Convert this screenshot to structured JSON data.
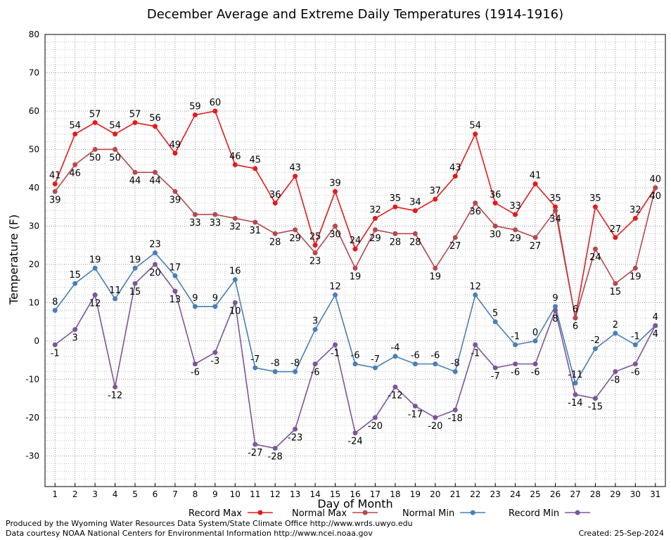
{
  "chart_data": {
    "type": "line",
    "title": "December Average and Extreme Daily Temperatures (1914-1916)",
    "xlabel": "Day of Month",
    "ylabel": "Temperature (F)",
    "x": [
      1,
      2,
      3,
      4,
      5,
      6,
      7,
      8,
      9,
      10,
      11,
      12,
      13,
      14,
      15,
      16,
      17,
      18,
      19,
      20,
      21,
      22,
      23,
      24,
      25,
      26,
      27,
      28,
      29,
      30,
      31
    ],
    "ylim": [
      -38,
      80
    ],
    "yticks": [
      80,
      70,
      60,
      50,
      40,
      30,
      20,
      10,
      0,
      -10,
      -20,
      -30
    ],
    "grid": true,
    "legend_position": "bottom",
    "series": [
      {
        "name": "Record Max",
        "color": "#e41a1c",
        "marker": "circle",
        "values": [
          41,
          54,
          57,
          54,
          57,
          56,
          49,
          59,
          60,
          46,
          45,
          36,
          43,
          25,
          39,
          24,
          32,
          35,
          34,
          37,
          43,
          54,
          36,
          33,
          41,
          35,
          6,
          35,
          27,
          32,
          40
        ]
      },
      {
        "name": "Normal Max",
        "color": "#b5484d",
        "marker": "circle",
        "values": [
          39,
          46,
          50,
          50,
          44,
          44,
          39,
          33,
          33,
          32,
          31,
          28,
          29,
          23,
          30,
          19,
          29,
          28,
          28,
          19,
          27,
          36,
          30,
          29,
          27,
          34,
          6,
          24,
          15,
          19,
          40
        ]
      },
      {
        "name": "Normal Min",
        "color": "#4a7fb5",
        "marker": "circle",
        "values": [
          8,
          15,
          19,
          11,
          19,
          23,
          17,
          9,
          9,
          16,
          -7,
          -8,
          -8,
          3,
          12,
          -6,
          -7,
          -4,
          -6,
          -6,
          -8,
          12,
          5,
          -1,
          0,
          9,
          -11,
          -2,
          2,
          -1,
          4
        ]
      },
      {
        "name": "Record Min",
        "color": "#7b569b",
        "marker": "circle",
        "values": [
          -1,
          3,
          12,
          -12,
          15,
          20,
          13,
          -6,
          -3,
          10,
          -27,
          -28,
          -23,
          -6,
          -1,
          -24,
          -20,
          -12,
          -17,
          -20,
          -18,
          -1,
          -7,
          -6,
          -6,
          8,
          -14,
          -15,
          -8,
          -6,
          4
        ]
      }
    ]
  },
  "footer": {
    "line1": "Produced by the Wyoming Water Resources Data System/State Climate Office http://www.wrds.uwyo.edu",
    "line2": "Data courtesy NOAA National Centers for Environmental Information http://www.ncei.noaa.gov",
    "created": "Created:  25-Sep-2024"
  }
}
